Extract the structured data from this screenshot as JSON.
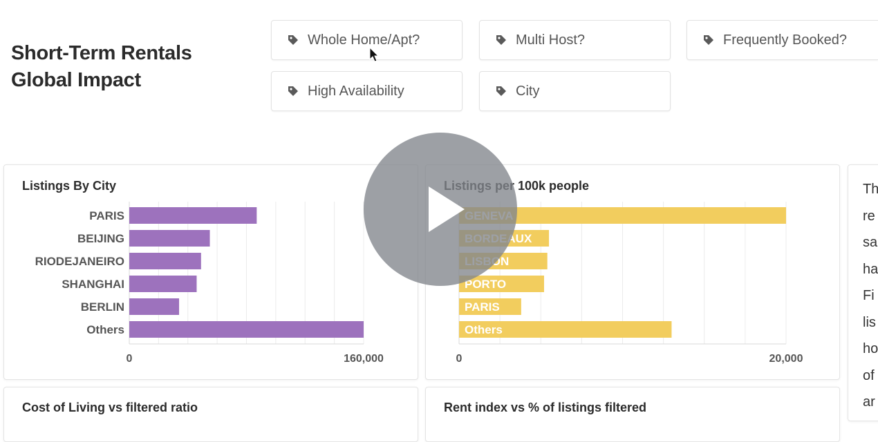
{
  "header": {
    "title_line1": "Short-Term Rentals",
    "title_line2": "Global Impact"
  },
  "filters": [
    {
      "label": "Whole Home/Apt?",
      "icon": "tag-icon"
    },
    {
      "label": "Multi Host?",
      "icon": "tag-icon"
    },
    {
      "label": "Frequently Booked?",
      "icon": "tag-icon"
    },
    {
      "label": "High Availability",
      "icon": "tag-icon"
    },
    {
      "label": "City",
      "icon": "tag-icon"
    }
  ],
  "cards": {
    "listings_by_city": {
      "title": "Listings By City"
    },
    "listings_per_100k": {
      "title": "Listings per 100k people"
    },
    "cost_of_living": {
      "title": "Cost of Living vs filtered ratio"
    },
    "rent_index": {
      "title": "Rent index vs % of listings filtered"
    }
  },
  "side_text": {
    "lines": [
      "Th",
      "re",
      "sa",
      "ha",
      "Fi",
      "lis",
      "ho",
      "of",
      "ar"
    ]
  },
  "colors": {
    "purple": "#9d72bd",
    "yellow": "#f2cd5e",
    "play_overlay": "#82858c"
  },
  "chart_data": [
    {
      "type": "bar",
      "orientation": "horizontal",
      "title": "Listings By City",
      "categories": [
        "PARIS",
        "BEIJING",
        "RIODEJANEIRO",
        "SHANGHAI",
        "BERLIN",
        "Others"
      ],
      "values": [
        87000,
        55000,
        49000,
        46000,
        34000,
        160000
      ],
      "xlim": [
        0,
        160000
      ],
      "xticks": [
        "0",
        "160,000"
      ],
      "grid": true,
      "color": "#9d72bd"
    },
    {
      "type": "bar",
      "orientation": "horizontal",
      "title": "Listings per 100k people",
      "categories": [
        "GENEVA",
        "BORDEAUX",
        "LISBON",
        "PORTO",
        "PARIS",
        "Others"
      ],
      "values": [
        20000,
        5500,
        5400,
        5200,
        3800,
        13000
      ],
      "xlim": [
        0,
        20000
      ],
      "xticks": [
        "0",
        "20,000"
      ],
      "grid": true,
      "color": "#f2cd5e"
    }
  ]
}
